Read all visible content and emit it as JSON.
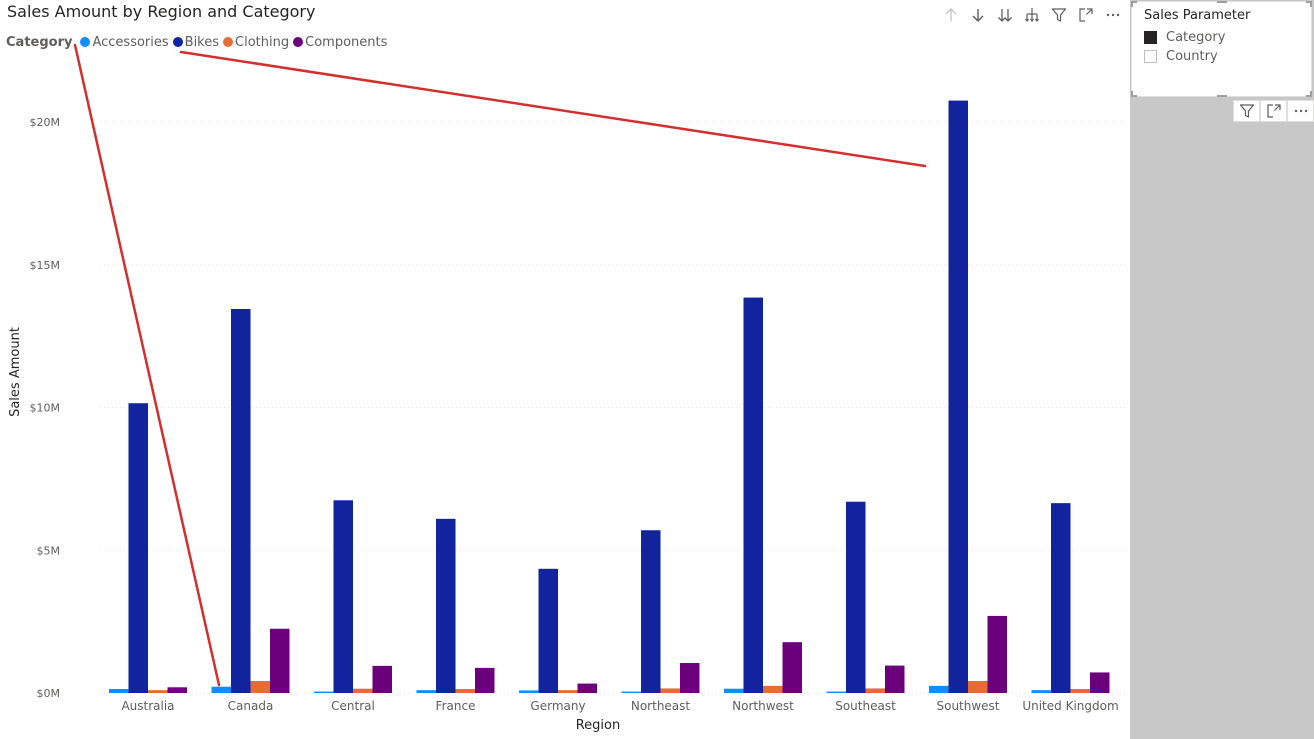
{
  "visual": {
    "title": "Sales Amount by Region and Category",
    "legend": {
      "title": "Category",
      "items": [
        {
          "label": "Accessories",
          "color": "#118dff"
        },
        {
          "label": "Bikes",
          "color": "#12239e"
        },
        {
          "label": "Clothing",
          "color": "#e66c37"
        },
        {
          "label": "Components",
          "color": "#6b007b"
        }
      ]
    },
    "toolbar": [
      "arrow-up-icon",
      "arrow-down-icon",
      "double-arrow-down-icon",
      "expand-hierarchy-icon",
      "filter-icon",
      "focus-mode-icon",
      "more-options-icon"
    ]
  },
  "chart_data": {
    "type": "bar",
    "title": "Sales Amount by Region and Category",
    "xlabel": "Region",
    "ylabel": "Sales Amount",
    "ylim": [
      0,
      20000000
    ],
    "yticks": [
      {
        "value": 0,
        "label": "$0M"
      },
      {
        "value": 5000000,
        "label": "$5M"
      },
      {
        "value": 10000000,
        "label": "$10M"
      },
      {
        "value": 15000000,
        "label": "$15M"
      },
      {
        "value": 20000000,
        "label": "$20M"
      }
    ],
    "grid": true,
    "legend_position": "top-left",
    "categories": [
      "Australia",
      "Canada",
      "Central",
      "France",
      "Germany",
      "Northeast",
      "Northwest",
      "Southeast",
      "Southwest",
      "United Kingdom"
    ],
    "series": [
      {
        "name": "Accessories",
        "color": "#118dff",
        "values": [
          140000,
          220000,
          50000,
          100000,
          90000,
          50000,
          150000,
          50000,
          250000,
          100000
        ]
      },
      {
        "name": "Bikes",
        "color": "#12239e",
        "values": [
          10150000,
          13450000,
          6750000,
          6100000,
          4350000,
          5700000,
          13850000,
          6700000,
          20750000,
          6650000
        ]
      },
      {
        "name": "Clothing",
        "color": "#e66c37",
        "values": [
          100000,
          420000,
          150000,
          140000,
          100000,
          160000,
          250000,
          160000,
          420000,
          140000
        ]
      },
      {
        "name": "Components",
        "color": "#6b007b",
        "values": [
          200000,
          2250000,
          950000,
          880000,
          330000,
          1050000,
          1780000,
          960000,
          2700000,
          720000
        ]
      }
    ]
  },
  "slicer": {
    "title": "Sales Parameter",
    "options": [
      {
        "label": "Category",
        "checked": true
      },
      {
        "label": "Country",
        "checked": false
      }
    ],
    "toolbar": [
      "filter-icon",
      "focus-mode-icon",
      "more-options-icon"
    ]
  }
}
